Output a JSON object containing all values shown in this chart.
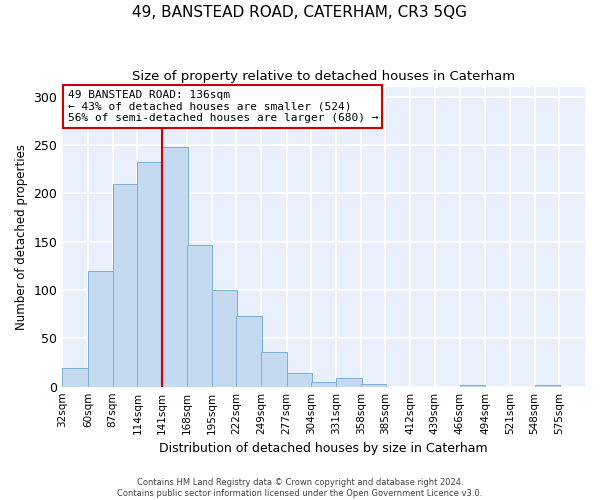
{
  "title": "49, BANSTEAD ROAD, CATERHAM, CR3 5QG",
  "subtitle": "Size of property relative to detached houses in Caterham",
  "xlabel": "Distribution of detached houses by size in Caterham",
  "ylabel": "Number of detached properties",
  "bar_color": "#c5d9f0",
  "bar_edge_color": "#7aafd4",
  "background_color": "#eaf0fb",
  "grid_color": "#ffffff",
  "bins": [
    32,
    60,
    87,
    114,
    141,
    168,
    195,
    222,
    249,
    277,
    304,
    331,
    358,
    385,
    412,
    439,
    466,
    494,
    521,
    548,
    575
  ],
  "bin_labels": [
    "32sqm",
    "60sqm",
    "87sqm",
    "114sqm",
    "141sqm",
    "168sqm",
    "195sqm",
    "222sqm",
    "249sqm",
    "277sqm",
    "304sqm",
    "331sqm",
    "358sqm",
    "385sqm",
    "412sqm",
    "439sqm",
    "466sqm",
    "494sqm",
    "521sqm",
    "548sqm",
    "575sqm"
  ],
  "values": [
    19,
    120,
    210,
    232,
    248,
    147,
    100,
    73,
    36,
    14,
    5,
    9,
    3,
    0,
    0,
    0,
    2,
    0,
    0,
    2
  ],
  "property_bin_index": 4,
  "vline_color": "#cc0000",
  "ylim": [
    0,
    310
  ],
  "yticks": [
    0,
    50,
    100,
    150,
    200,
    250,
    300
  ],
  "annotation_text": "49 BANSTEAD ROAD: 136sqm\n← 43% of detached houses are smaller (524)\n56% of semi-detached houses are larger (680) →",
  "annotation_box_color": "#ffffff",
  "annotation_box_edge": "#cc0000",
  "footer_line1": "Contains HM Land Registry data © Crown copyright and database right 2024.",
  "footer_line2": "Contains public sector information licensed under the Open Government Licence v3.0."
}
